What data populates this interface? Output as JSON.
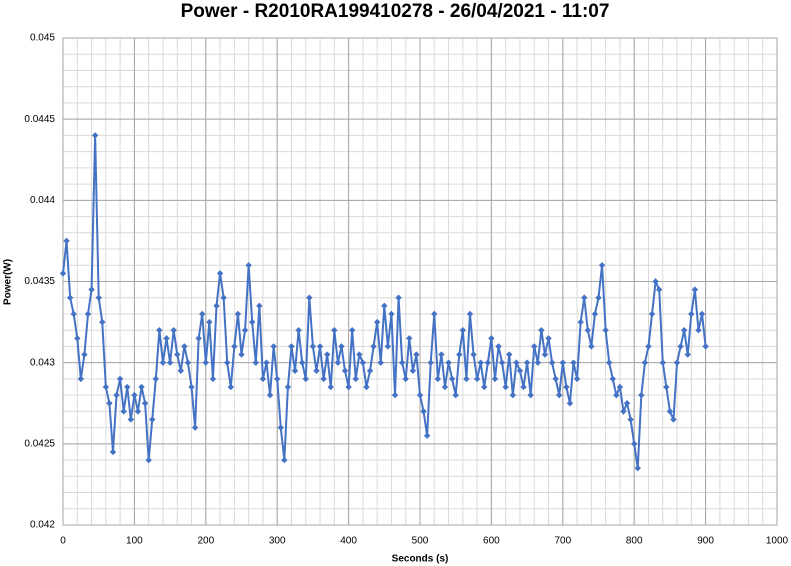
{
  "chart_data": {
    "type": "line",
    "title": "Power - R2010RA199410278 - 26/04/2021 - 11:07",
    "x_label": "Seconds (s)",
    "y_label": "Power(W)",
    "xlim": [
      0,
      1000
    ],
    "xticks": [
      0,
      100,
      200,
      300,
      400,
      500,
      600,
      700,
      800,
      900,
      1000
    ],
    "ylim": [
      0.042,
      0.045
    ],
    "yticks": [
      0.042,
      0.0425,
      0.043,
      0.0435,
      0.044,
      0.0445,
      0.045
    ],
    "grid": true,
    "minor_grid": true,
    "x": [
      0,
      5,
      10,
      15,
      20,
      25,
      30,
      35,
      40,
      45,
      50,
      55,
      60,
      65,
      70,
      75,
      80,
      85,
      90,
      95,
      100,
      105,
      110,
      115,
      120,
      125,
      130,
      135,
      140,
      145,
      150,
      155,
      160,
      165,
      170,
      175,
      180,
      185,
      190,
      195,
      200,
      205,
      210,
      215,
      220,
      225,
      230,
      235,
      240,
      245,
      250,
      255,
      260,
      265,
      270,
      275,
      280,
      285,
      290,
      295,
      300,
      305,
      310,
      315,
      320,
      325,
      330,
      335,
      340,
      345,
      350,
      355,
      360,
      365,
      370,
      375,
      380,
      385,
      390,
      395,
      400,
      405,
      410,
      415,
      420,
      425,
      430,
      435,
      440,
      445,
      450,
      455,
      460,
      465,
      470,
      475,
      480,
      485,
      490,
      495,
      500,
      505,
      510,
      515,
      520,
      525,
      530,
      535,
      540,
      545,
      550,
      555,
      560,
      565,
      570,
      575,
      580,
      585,
      590,
      595,
      600,
      605,
      610,
      615,
      620,
      625,
      630,
      635,
      640,
      645,
      650,
      655,
      660,
      665,
      670,
      675,
      680,
      685,
      690,
      695,
      700,
      705,
      710,
      715,
      720,
      725,
      730,
      735,
      740,
      745,
      750,
      755,
      760,
      765,
      770,
      775,
      780,
      785,
      790,
      795,
      800,
      805,
      810,
      815,
      820,
      825,
      830,
      835,
      840,
      845,
      850,
      855,
      860,
      865,
      870,
      875,
      880,
      885,
      890,
      895,
      900
    ],
    "series": [
      {
        "name": "Power",
        "color": "#4472c4",
        "values": [
          0.04355,
          0.04375,
          0.0434,
          0.0433,
          0.04315,
          0.0429,
          0.04305,
          0.0433,
          0.04345,
          0.0444,
          0.0434,
          0.04325,
          0.04285,
          0.04275,
          0.04245,
          0.0428,
          0.0429,
          0.0427,
          0.04285,
          0.04265,
          0.0428,
          0.0427,
          0.04285,
          0.04275,
          0.0424,
          0.04265,
          0.0429,
          0.0432,
          0.043,
          0.04315,
          0.043,
          0.0432,
          0.04305,
          0.04295,
          0.0431,
          0.043,
          0.04285,
          0.0426,
          0.04315,
          0.0433,
          0.043,
          0.04325,
          0.0429,
          0.04335,
          0.04355,
          0.0434,
          0.043,
          0.04285,
          0.0431,
          0.0433,
          0.04305,
          0.0432,
          0.0436,
          0.04325,
          0.043,
          0.04335,
          0.0429,
          0.043,
          0.0428,
          0.0431,
          0.0429,
          0.0426,
          0.0424,
          0.04285,
          0.0431,
          0.04295,
          0.0432,
          0.043,
          0.0429,
          0.0434,
          0.0431,
          0.04295,
          0.0431,
          0.0429,
          0.04305,
          0.04285,
          0.0432,
          0.043,
          0.0431,
          0.04295,
          0.04285,
          0.0432,
          0.0429,
          0.04305,
          0.043,
          0.04285,
          0.04295,
          0.0431,
          0.04325,
          0.043,
          0.04335,
          0.0431,
          0.0433,
          0.0428,
          0.0434,
          0.043,
          0.0429,
          0.04315,
          0.04295,
          0.04305,
          0.0428,
          0.0427,
          0.04255,
          0.043,
          0.0433,
          0.0429,
          0.04305,
          0.04285,
          0.043,
          0.0429,
          0.0428,
          0.04305,
          0.0432,
          0.0429,
          0.0433,
          0.04305,
          0.0429,
          0.043,
          0.04285,
          0.043,
          0.04315,
          0.0429,
          0.0431,
          0.043,
          0.04285,
          0.04305,
          0.0428,
          0.043,
          0.04295,
          0.04285,
          0.043,
          0.0428,
          0.0431,
          0.043,
          0.0432,
          0.04305,
          0.04315,
          0.043,
          0.0429,
          0.0428,
          0.043,
          0.04285,
          0.04275,
          0.043,
          0.0429,
          0.04325,
          0.0434,
          0.0432,
          0.0431,
          0.0433,
          0.0434,
          0.0436,
          0.0432,
          0.043,
          0.0429,
          0.0428,
          0.04285,
          0.0427,
          0.04275,
          0.04265,
          0.0425,
          0.04235,
          0.0428,
          0.043,
          0.0431,
          0.0433,
          0.0435,
          0.04345,
          0.043,
          0.04285,
          0.0427,
          0.04265,
          0.043,
          0.0431,
          0.0432,
          0.04305,
          0.0433,
          0.04345,
          0.0432,
          0.0433,
          0.0431
        ]
      }
    ]
  }
}
